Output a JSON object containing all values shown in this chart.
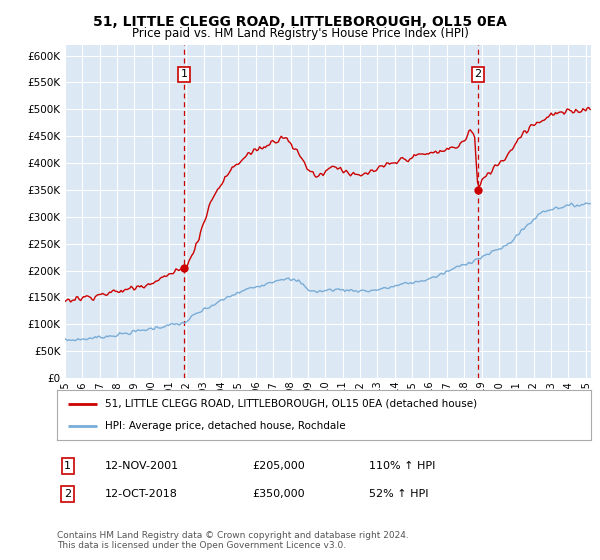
{
  "title": "51, LITTLE CLEGG ROAD, LITTLEBOROUGH, OL15 0EA",
  "subtitle": "Price paid vs. HM Land Registry's House Price Index (HPI)",
  "legend_label_red": "51, LITTLE CLEGG ROAD, LITTLEBOROUGH, OL15 0EA (detached house)",
  "legend_label_blue": "HPI: Average price, detached house, Rochdale",
  "annotation1_label": "1",
  "annotation1_date": "12-NOV-2001",
  "annotation1_price": "£205,000",
  "annotation1_hpi": "110% ↑ HPI",
  "annotation2_label": "2",
  "annotation2_date": "12-OCT-2018",
  "annotation2_price": "£350,000",
  "annotation2_hpi": "52% ↑ HPI",
  "footer": "Contains HM Land Registry data © Crown copyright and database right 2024.\nThis data is licensed under the Open Government Licence v3.0.",
  "plot_bg_color": "#dce9f5",
  "red_color": "#cc0000",
  "blue_color": "#7aacd6",
  "ylim": [
    0,
    620000
  ],
  "yticks": [
    0,
    50000,
    100000,
    150000,
    200000,
    250000,
    300000,
    350000,
    400000,
    450000,
    500000,
    550000,
    600000
  ],
  "ytick_labels": [
    "£0",
    "£50K",
    "£100K",
    "£150K",
    "£200K",
    "£250K",
    "£300K",
    "£350K",
    "£400K",
    "£450K",
    "£500K",
    "£550K",
    "£600K"
  ],
  "sale1_x": 2001.87,
  "sale1_y": 205000,
  "sale2_x": 2018.79,
  "sale2_y": 350000,
  "xmin": 1995.0,
  "xmax": 2025.3
}
